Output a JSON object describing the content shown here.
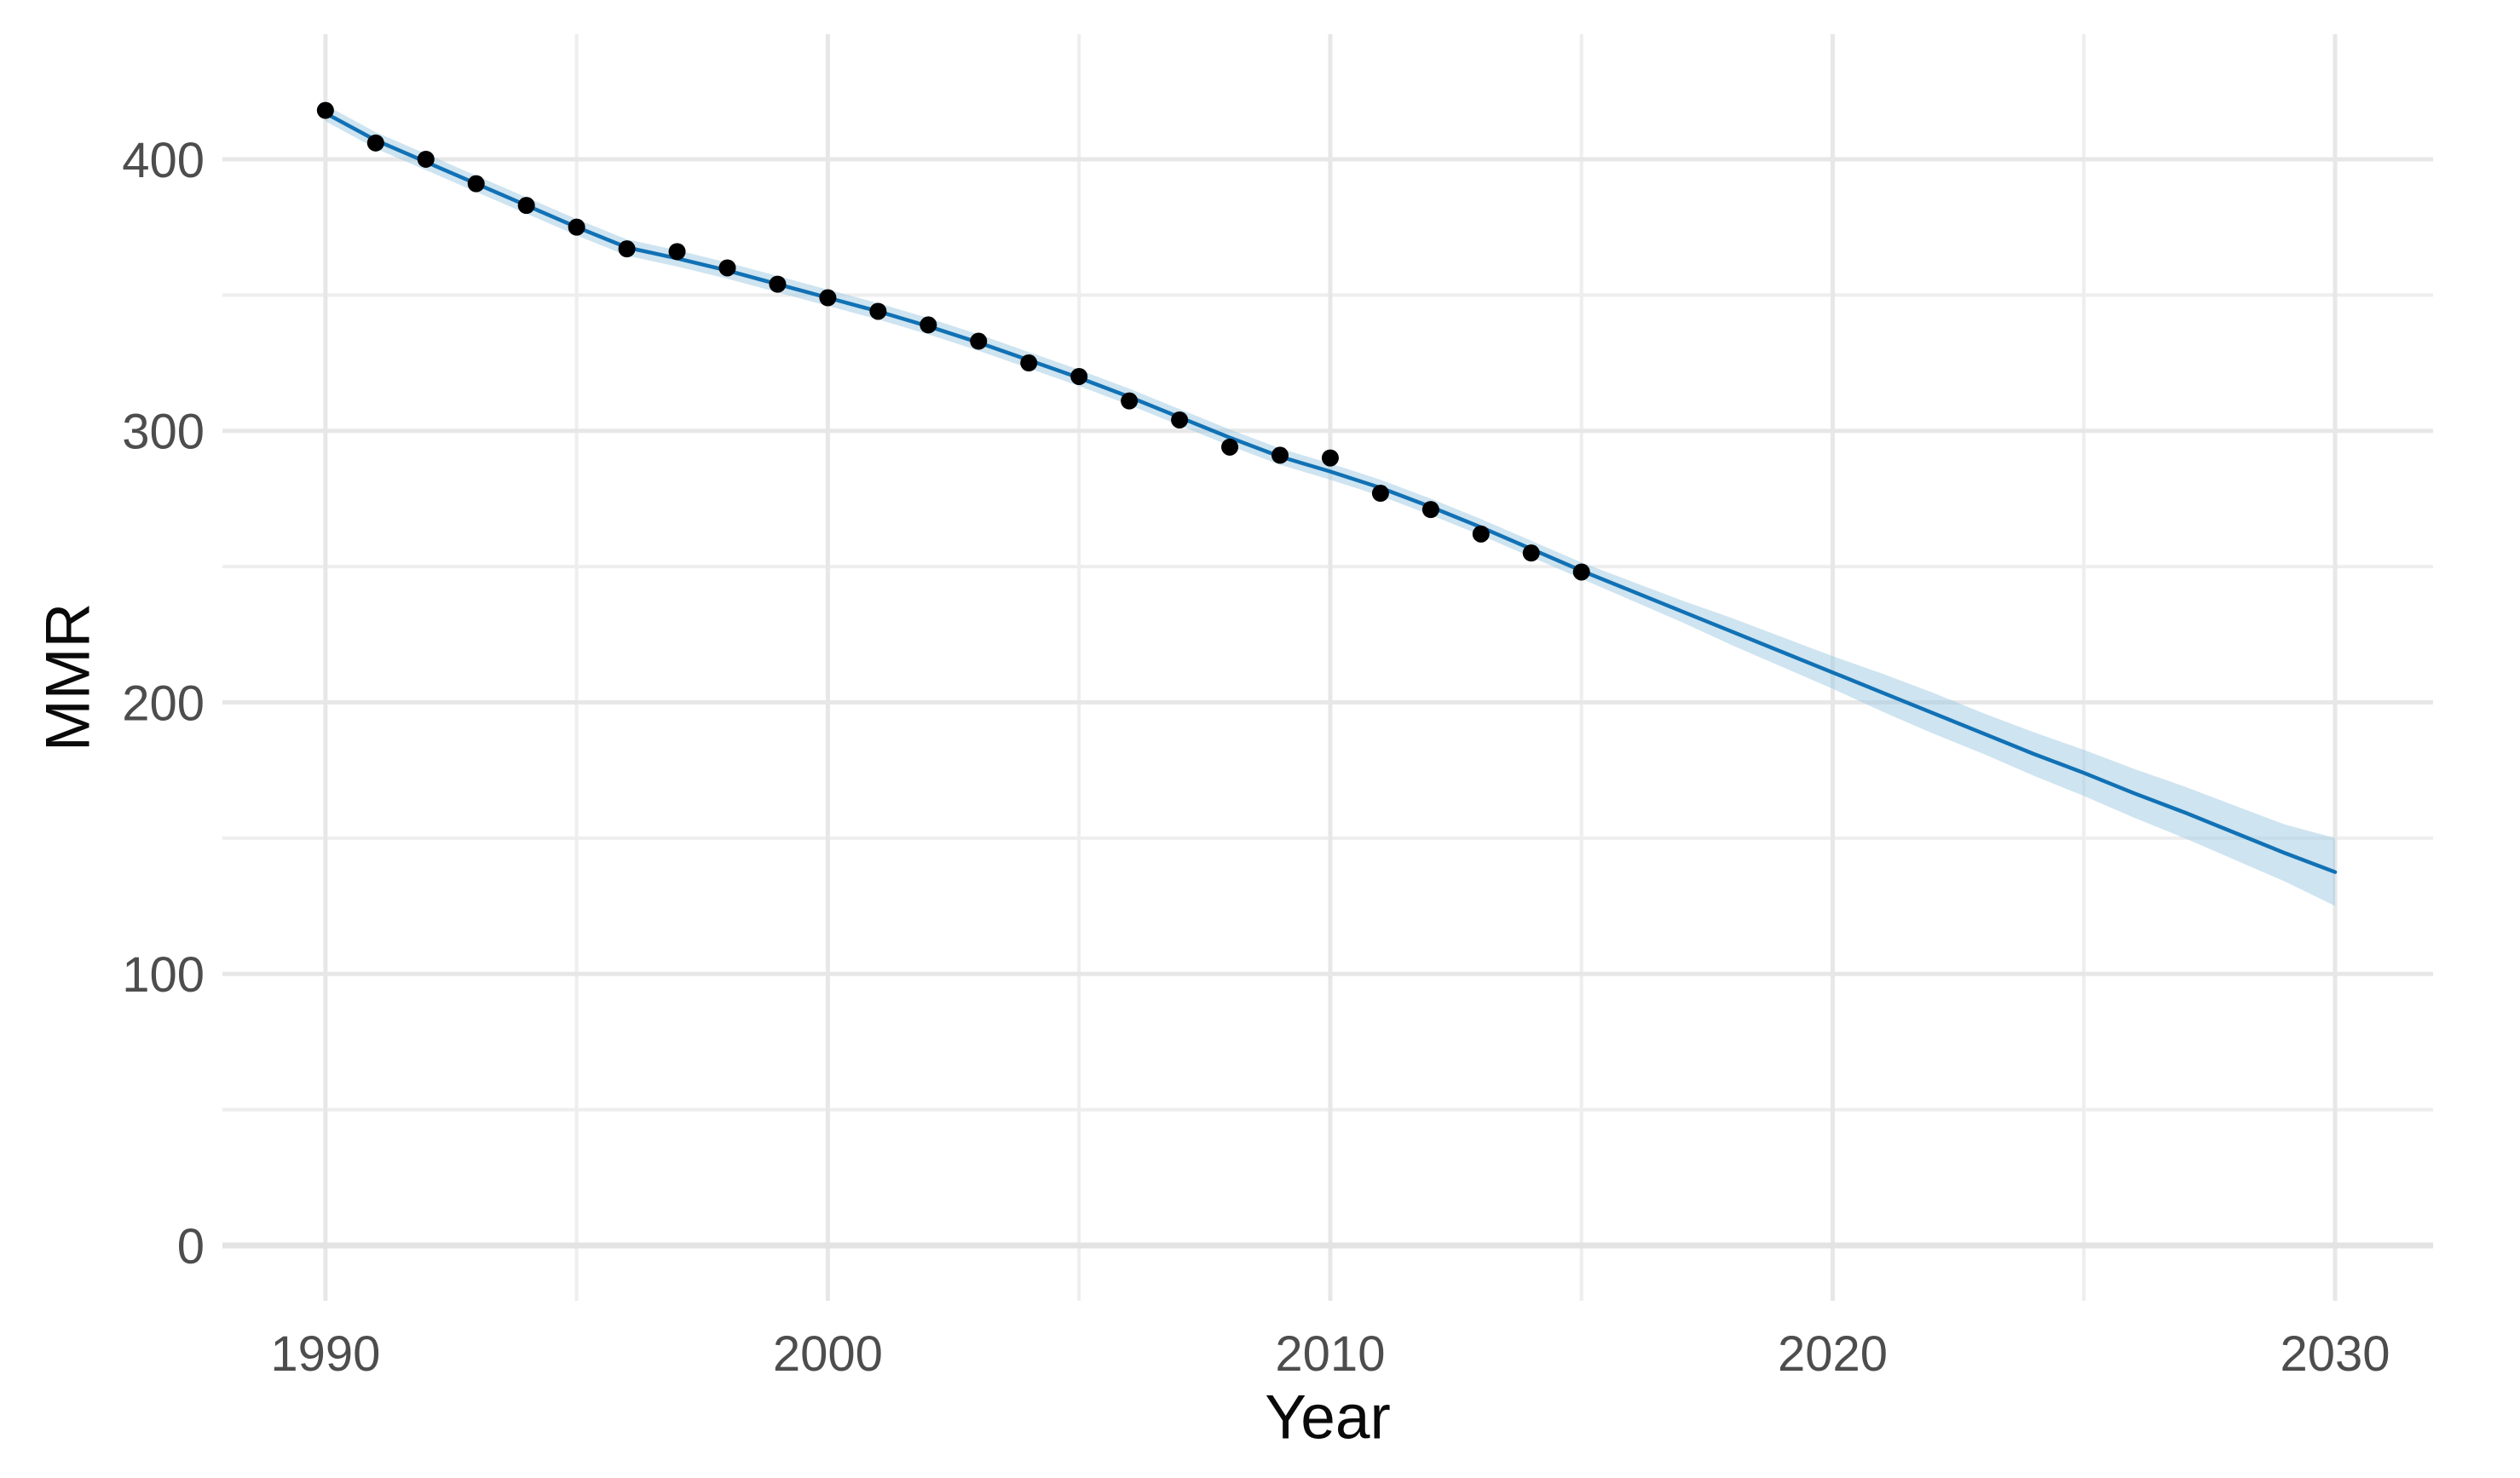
{
  "chart_data": {
    "type": "line",
    "title": "",
    "xlabel": "Year",
    "ylabel": "MMR",
    "x_major_ticks": [
      1990,
      2000,
      2010,
      2020,
      2030
    ],
    "x_minor_ticks": [
      1995,
      2005,
      2015,
      2025
    ],
    "y_major_ticks": [
      0,
      100,
      200,
      300,
      400
    ],
    "y_minor_ticks": [
      50,
      150,
      250,
      350
    ],
    "xlim": [
      1987.95,
      2031.95
    ],
    "ylim": [
      -20.4,
      446.1
    ],
    "grid": "on",
    "legend": "none",
    "colors": {
      "point": "#000000",
      "line": "#1171b5",
      "ribbon_fill": "#9ecae1",
      "ribbon_opacity": 0.5,
      "grid_major": "#e7e7e7",
      "grid_minor": "#eeeeee",
      "zero_line": "#e3e3e3",
      "axis_text": "#4d4d4d",
      "axis_title": "#0a0a0a",
      "background": "#ffffff"
    },
    "series": [
      {
        "name": "observed_points",
        "type": "scatter",
        "color": "#000000",
        "x": [
          1990,
          1991,
          1992,
          1993,
          1994,
          1995,
          1996,
          1997,
          1998,
          1999,
          2000,
          2001,
          2002,
          2003,
          2004,
          2005,
          2006,
          2007,
          2008,
          2009,
          2010,
          2011,
          2012,
          2013,
          2014,
          2015
        ],
        "y": [
          418,
          406,
          400,
          391,
          383,
          375,
          367,
          366,
          360,
          354,
          349,
          344,
          339,
          333,
          325,
          320,
          311,
          304,
          294,
          291,
          290,
          277,
          271,
          262,
          255,
          248
        ]
      },
      {
        "name": "fitted_line",
        "type": "line",
        "color": "#1171b5",
        "x": [
          1990,
          1991,
          1992,
          1993,
          1994,
          1995,
          1996,
          1997,
          1998,
          1999,
          2000,
          2001,
          2002,
          2003,
          2004,
          2005,
          2006,
          2007,
          2008,
          2009,
          2010,
          2011,
          2012,
          2013,
          2014,
          2015,
          2016,
          2017,
          2018,
          2019,
          2020,
          2021,
          2022,
          2023,
          2024,
          2025,
          2026,
          2027,
          2028,
          2029,
          2030
        ],
        "y": [
          417,
          407,
          399,
          391,
          383,
          375,
          367.5,
          363.5,
          359,
          354,
          349,
          344,
          338.5,
          332.5,
          326,
          319.5,
          312.5,
          305,
          297.5,
          290.5,
          285,
          279,
          272,
          264.5,
          256.5,
          248.5,
          241,
          233.5,
          226,
          218.5,
          211,
          203.5,
          196,
          188.5,
          181,
          174,
          166.5,
          159.5,
          152,
          144.5,
          137.5
        ]
      },
      {
        "name": "confidence_ribbon",
        "type": "ribbon",
        "color": "#9ecae1",
        "opacity": 0.5,
        "x": [
          1990,
          1991,
          1992,
          1993,
          1994,
          1995,
          1996,
          1997,
          1998,
          1999,
          2000,
          2001,
          2002,
          2003,
          2004,
          2005,
          2006,
          2007,
          2008,
          2009,
          2010,
          2011,
          2012,
          2013,
          2014,
          2015,
          2016,
          2017,
          2018,
          2019,
          2020,
          2021,
          2022,
          2023,
          2024,
          2025,
          2026,
          2027,
          2028,
          2029,
          2030
        ],
        "lower": [
          414,
          404,
          396,
          388,
          380,
          372,
          364.5,
          360.5,
          356,
          351,
          346,
          341,
          335.5,
          329.5,
          323,
          316.5,
          309.5,
          302,
          294.5,
          287.5,
          282,
          276,
          269,
          261.5,
          253.5,
          245.5,
          237.5,
          229.5,
          221,
          213,
          205,
          196.5,
          188.5,
          181,
          173,
          165.5,
          157.5,
          150,
          142,
          134,
          125
        ],
        "upper": [
          420,
          410,
          402,
          394,
          386,
          378,
          370.5,
          366.5,
          362,
          357,
          352,
          347,
          341.5,
          335.5,
          329,
          322.5,
          315.5,
          308,
          300.5,
          293.5,
          288,
          282,
          275,
          267.5,
          259.5,
          251.5,
          244.5,
          237.5,
          231,
          224,
          217,
          210.5,
          203.5,
          196,
          189,
          182.5,
          175.5,
          169,
          162,
          155,
          150
        ]
      }
    ]
  }
}
